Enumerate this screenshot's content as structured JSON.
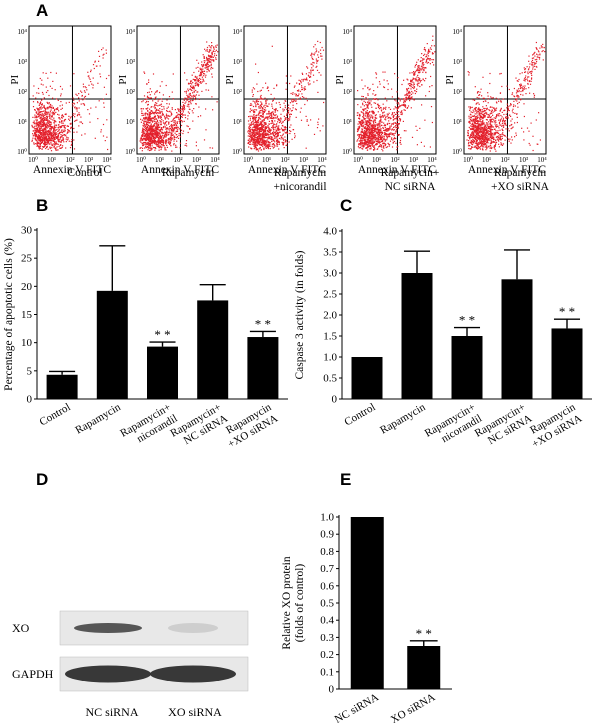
{
  "panels": {
    "a": "A",
    "b": "B",
    "c": "C",
    "d": "D",
    "e": "E"
  },
  "flow_cytometry": {
    "x_label": "Annexin V FITC",
    "y_label": "PI",
    "y_ticks": [
      "10⁴",
      "10³",
      "10²",
      "10¹",
      "10⁰"
    ],
    "x_ticks": [
      "10⁰",
      "10¹",
      "10²",
      "10³",
      "10⁴"
    ],
    "groups": [
      {
        "caption": [
          "Control"
        ],
        "upper_right_density": 0.1
      },
      {
        "caption": [
          "Rapamycin"
        ],
        "upper_right_density": 0.8
      },
      {
        "caption": [
          "Rapamycin",
          "+nicorandil"
        ],
        "upper_right_density": 0.35
      },
      {
        "caption": [
          "Rapamycin+",
          "NC siRNA"
        ],
        "upper_right_density": 0.7
      },
      {
        "caption": [
          "Rapamycin",
          "+XO siRNA"
        ],
        "upper_right_density": 0.4
      }
    ]
  },
  "chart_data": [
    {
      "panel": "B",
      "type": "bar",
      "categories": [
        "Control",
        "Rapamycin",
        "Rapamycin+\nnicorandil",
        "Rapamycin+\nNC siRNA",
        "Rapamycin\n+XO siRNA"
      ],
      "values": [
        4.3,
        19.2,
        9.3,
        17.5,
        11.0
      ],
      "errors": [
        0.6,
        8.0,
        0.8,
        2.8,
        1.0
      ],
      "significance": [
        "",
        "",
        "* *",
        "",
        "* *"
      ],
      "ylabel": "Percentage of apoptotic cells (%)",
      "ylim": [
        0,
        30
      ],
      "yticks": [
        0,
        5,
        10,
        15,
        20,
        25,
        30
      ],
      "color": "#000000"
    },
    {
      "panel": "C",
      "type": "bar",
      "categories": [
        "Control",
        "Rapamycin",
        "Rapamycin+\nnicorandil",
        "Rapamycin+\nNC siRNA",
        "Rapamycin\n+XO siRNA"
      ],
      "values": [
        1.0,
        3.0,
        1.5,
        2.85,
        1.68
      ],
      "errors": [
        0,
        0.52,
        0.2,
        0.7,
        0.22
      ],
      "significance": [
        "",
        "",
        "* *",
        "",
        "* *"
      ],
      "ylabel": "Caspase 3 activity (in folds)",
      "ylim": [
        0,
        4.0
      ],
      "yticks": [
        "0",
        "0.5",
        "1.0",
        "1.5",
        "2.0",
        "2.5",
        "3.0",
        "3.5",
        "4.0"
      ],
      "color": "#000000"
    },
    {
      "panel": "E",
      "type": "bar",
      "categories": [
        "NC siRNA",
        "XO siRNA"
      ],
      "values": [
        1.0,
        0.25
      ],
      "errors": [
        0,
        0.03
      ],
      "significance": [
        "",
        "* *"
      ],
      "ylabel": "Relative XO protein\n(folds of control)",
      "ylim": [
        0,
        1.0
      ],
      "yticks": [
        "0",
        "0.1",
        "0.2",
        "0.3",
        "0.4",
        "0.5",
        "0.6",
        "0.7",
        "0.8",
        "0.9",
        "1.0"
      ],
      "color": "#000000"
    }
  ],
  "western_blot": {
    "rows": [
      {
        "label": "XO",
        "band_intensity": [
          0.75,
          0.15
        ]
      },
      {
        "label": "GAPDH",
        "band_intensity": [
          0.9,
          0.9
        ]
      }
    ],
    "lanes": [
      "NC siRNA",
      "XO siRNA"
    ]
  }
}
